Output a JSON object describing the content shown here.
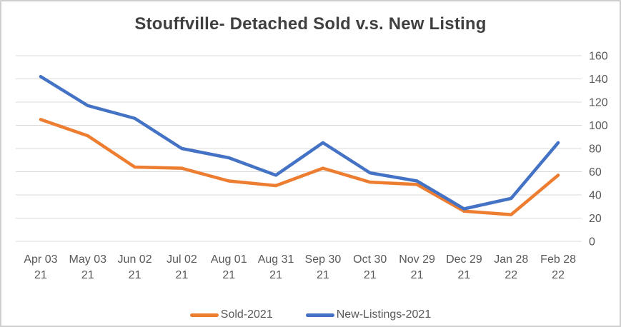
{
  "chart_data": {
    "type": "line",
    "title": "Stouffville- Detached Sold v.s. New Listing",
    "categories": [
      "Apr 03 21",
      "May 03 21",
      "Jun 02 21",
      "Jul 02 21",
      "Aug 01 21",
      "Aug 31 21",
      "Sep 30 21",
      "Oct 30 21",
      "Nov 29 21",
      "Dec 29 21",
      "Jan 28 22",
      "Feb 28 22"
    ],
    "series": [
      {
        "name": "Sold-2021",
        "color": "#ED7D31",
        "values": [
          105,
          91,
          64,
          63,
          52,
          48,
          63,
          51,
          49,
          26,
          23,
          57
        ]
      },
      {
        "name": "New-Listings-2021",
        "color": "#4472C4",
        "values": [
          142,
          117,
          106,
          80,
          72,
          57,
          85,
          59,
          52,
          28,
          37,
          85
        ]
      }
    ],
    "xlabel": "",
    "ylabel": "",
    "ylim": [
      0,
      160
    ],
    "ytick_step": 20,
    "grid": true,
    "y_axis_side": "right",
    "legend_position": "bottom"
  },
  "styles": {
    "title_color": "#404040",
    "axis_label_color": "#595959",
    "gridline_color": "#D9D9D9",
    "border_color": "#CFCFCF",
    "background": "#FFFFFF"
  }
}
